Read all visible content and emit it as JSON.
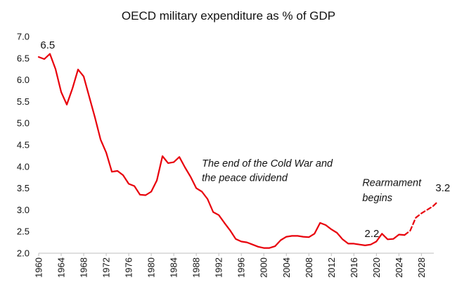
{
  "chart_data": {
    "type": "line",
    "title": "OECD military expenditure as % of GDP",
    "xlabel": "",
    "ylabel": "",
    "xlim": [
      1960,
      2030
    ],
    "ylim": [
      2.0,
      7.0
    ],
    "y_ticks": [
      "2.0",
      "2.5",
      "3.0",
      "3.5",
      "4.0",
      "4.5",
      "5.0",
      "5.5",
      "6.0",
      "6.5",
      "7.0"
    ],
    "x_ticks": [
      "1960",
      "1964",
      "1968",
      "1972",
      "1976",
      "1980",
      "1984",
      "1988",
      "1992",
      "1996",
      "2000",
      "2004",
      "2008",
      "2012",
      "2016",
      "2020",
      "2024",
      "2028"
    ],
    "grid": false,
    "line_color": "#e8000b",
    "series": [
      {
        "style": "solid",
        "x": [
          1960,
          1961,
          1962,
          1963,
          1964,
          1965,
          1966,
          1967,
          1968,
          1969,
          1970,
          1971,
          1972,
          1973,
          1974,
          1975,
          1976,
          1977,
          1978,
          1979,
          1980,
          1981,
          1982,
          1983,
          1984,
          1985,
          1986,
          1987,
          1988,
          1989,
          1990,
          1991,
          1992,
          1993,
          1994,
          1995,
          1996,
          1997,
          1998,
          1999,
          2000,
          2001,
          2002,
          2003,
          2004,
          2005,
          2006,
          2007,
          2008,
          2009,
          2010,
          2011,
          2012,
          2013,
          2014,
          2015,
          2016,
          2017,
          2018,
          2019,
          2020,
          2021,
          2022,
          2023,
          2024,
          2025
        ],
        "y": [
          6.53,
          6.48,
          6.6,
          6.25,
          5.72,
          5.43,
          5.8,
          6.24,
          6.08,
          5.6,
          5.13,
          4.62,
          4.32,
          3.88,
          3.9,
          3.8,
          3.6,
          3.55,
          3.35,
          3.34,
          3.42,
          3.68,
          4.24,
          4.08,
          4.1,
          4.22,
          3.98,
          3.76,
          3.5,
          3.42,
          3.25,
          2.95,
          2.88,
          2.7,
          2.53,
          2.33,
          2.27,
          2.25,
          2.2,
          2.15,
          2.12,
          2.12,
          2.16,
          2.3,
          2.38,
          2.4,
          2.4,
          2.38,
          2.37,
          2.45,
          2.7,
          2.65,
          2.55,
          2.47,
          2.32,
          2.22,
          2.22,
          2.2,
          2.18,
          2.2,
          2.27,
          2.45,
          2.32,
          2.33,
          2.43,
          2.42
        ]
      },
      {
        "style": "dashed",
        "x": [
          2025,
          2026,
          2027,
          2028,
          2029,
          2030,
          2031
        ],
        "y": [
          2.42,
          2.52,
          2.82,
          2.92,
          3.0,
          3.08,
          3.2
        ]
      }
    ],
    "annotations": [
      {
        "text": "The end of the Cold War and",
        "x": 1989,
        "y": 4.0
      },
      {
        "text": "the peace dividend",
        "x": 1989,
        "y": 3.66
      },
      {
        "text": "Rearmament",
        "x": 2017.5,
        "y": 3.55
      },
      {
        "text": "begins",
        "x": 2017.5,
        "y": 3.2
      }
    ],
    "data_labels": [
      {
        "text": "6.5",
        "x": 1960.3,
        "y": 6.72
      },
      {
        "text": "2.2",
        "x": 2017.9,
        "y": 2.37
      },
      {
        "text": "3.2",
        "x": 2030.5,
        "y": 3.43
      }
    ]
  }
}
